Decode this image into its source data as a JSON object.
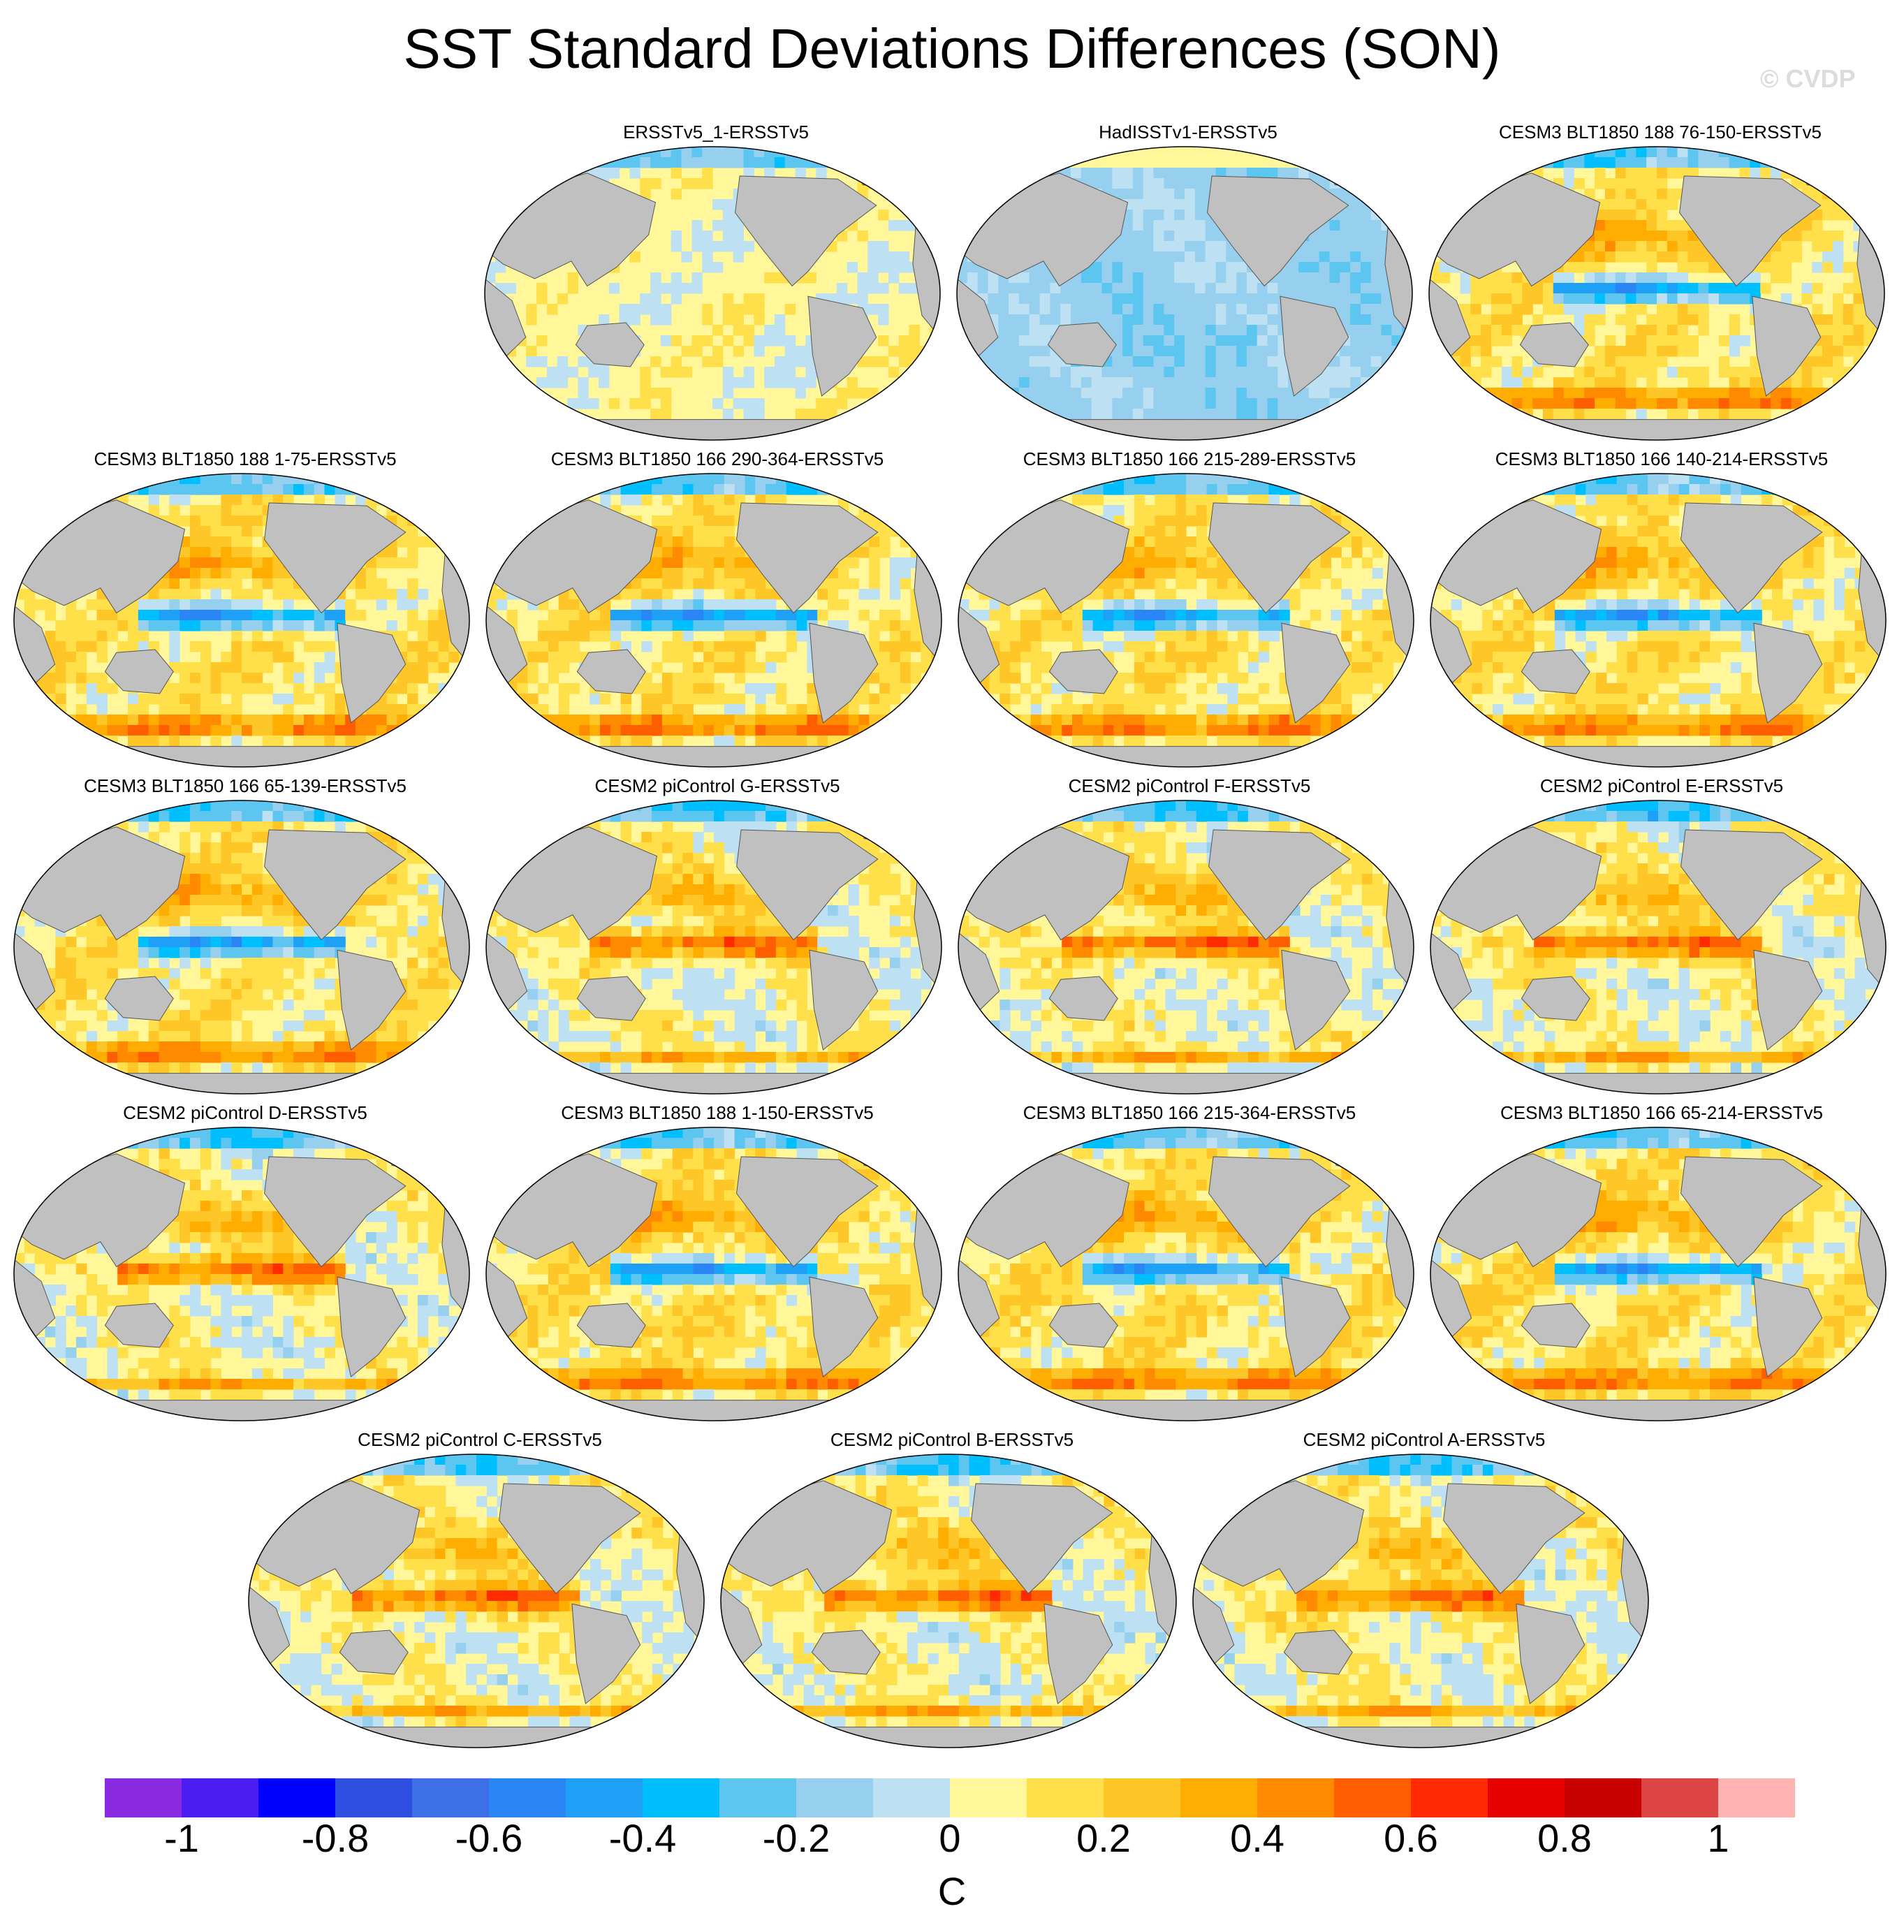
{
  "title": "SST Standard Deviations Differences (SON)",
  "watermark": "© CVDP",
  "colors": {
    "land": "#c0c0c0",
    "scale": [
      "#8a2be2",
      "#4b1cf0",
      "#0000ff",
      "#2e4fe0",
      "#3d6fe6",
      "#2a85f5",
      "#1ea0f6",
      "#00bfff",
      "#5cc6f0",
      "#97d0ef",
      "#bde1f2",
      "#fff79a",
      "#ffe04a",
      "#ffc627",
      "#ffad00",
      "#ff8a00",
      "#ff5e00",
      "#ff2a00",
      "#e60000",
      "#c80000",
      "#dd4545",
      "#ffb3b3"
    ]
  },
  "chart_data": {
    "type": "heatmap",
    "description_unit": "C",
    "colorbar": {
      "levels": [
        -1.1,
        -1.0,
        -0.9,
        -0.8,
        -0.7,
        -0.6,
        -0.5,
        -0.4,
        -0.3,
        -0.2,
        -0.1,
        0.0,
        0.1,
        0.2,
        0.3,
        0.4,
        0.5,
        0.6,
        0.7,
        0.8,
        0.9,
        1.0,
        1.1
      ],
      "tick_labels": [
        "-1",
        "-0.8",
        "-0.6",
        "-0.4",
        "-0.2",
        "0",
        "0.2",
        "0.4",
        "0.6",
        "0.8",
        "1"
      ],
      "unit": "C"
    },
    "panels": [
      {
        "title": "ERSSTv5_1-ERSSTv5",
        "pattern": "weak"
      },
      {
        "title": "HadISSTv1-ERSSTv5",
        "pattern": "negative"
      },
      {
        "title": "CESM3 BLT1850 188 76-150-ERSSTv5",
        "pattern": "cold-tongue"
      },
      {
        "title": "CESM3 BLT1850 188 1-75-ERSSTv5",
        "pattern": "cold-tongue"
      },
      {
        "title": "CESM3 BLT1850 166 290-364-ERSSTv5",
        "pattern": "cold-tongue"
      },
      {
        "title": "CESM3 BLT1850 166 215-289-ERSSTv5",
        "pattern": "cold-tongue"
      },
      {
        "title": "CESM3 BLT1850 166 140-214-ERSSTv5",
        "pattern": "cold-tongue"
      },
      {
        "title": "CESM3 BLT1850 166 65-139-ERSSTv5",
        "pattern": "cold-tongue"
      },
      {
        "title": "CESM2 piControl G-ERSSTv5",
        "pattern": "warm-tongue"
      },
      {
        "title": "CESM2 piControl F-ERSSTv5",
        "pattern": "warm-tongue"
      },
      {
        "title": "CESM2 piControl E-ERSSTv5",
        "pattern": "warm-tongue"
      },
      {
        "title": "CESM2 piControl D-ERSSTv5",
        "pattern": "warm-tongue"
      },
      {
        "title": "CESM3 BLT1850 188 1-150-ERSSTv5",
        "pattern": "cold-tongue"
      },
      {
        "title": "CESM3 BLT1850 166 215-364-ERSSTv5",
        "pattern": "cold-tongue"
      },
      {
        "title": "CESM3 BLT1850 166 65-214-ERSSTv5",
        "pattern": "cold-tongue"
      },
      {
        "title": "CESM2 piControl C-ERSSTv5",
        "pattern": "warm-tongue"
      },
      {
        "title": "CESM2 piControl B-ERSSTv5",
        "pattern": "warm-tongue"
      },
      {
        "title": "CESM2 piControl A-ERSSTv5",
        "pattern": "warm-tongue"
      }
    ]
  }
}
